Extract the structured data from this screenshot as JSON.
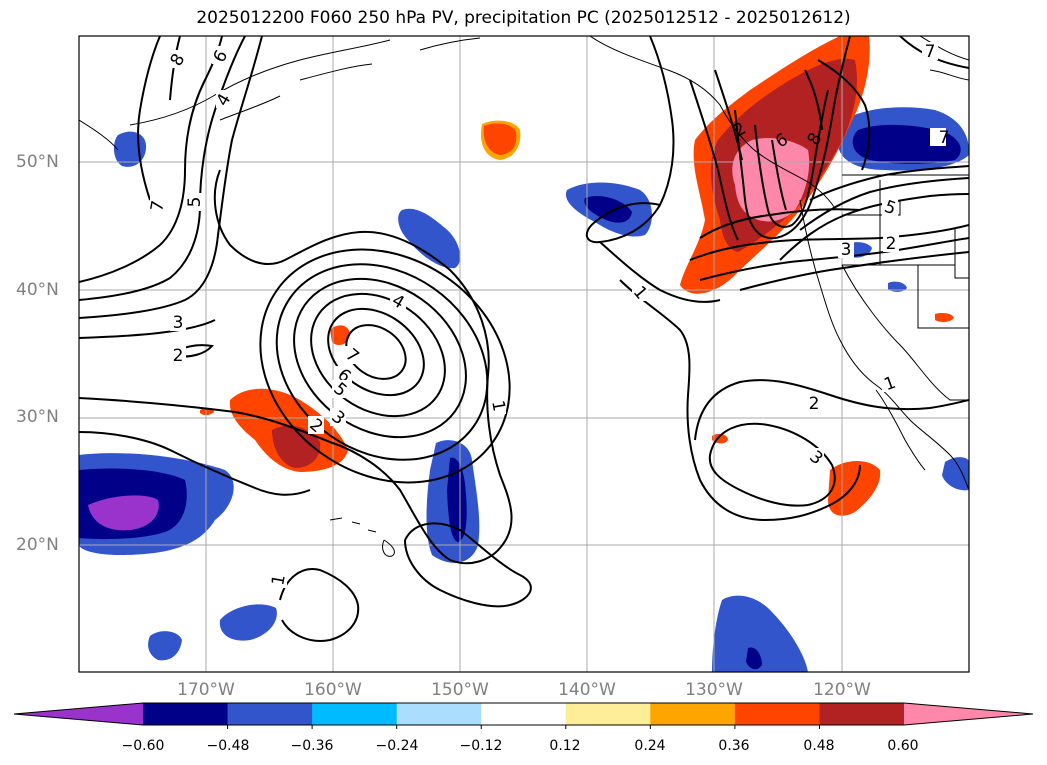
{
  "title": "2025012200 F060 250 hPa PV, precipitation PC (2025012512 - 2025012612)",
  "lat_labels": [
    "50°N",
    "40°N",
    "30°N",
    "20°N"
  ],
  "lon_labels": [
    "170°W",
    "160°W",
    "150°W",
    "140°W",
    "130°W",
    "120°W"
  ],
  "colorbar": {
    "ticks": [
      "−0.60",
      "−0.48",
      "−0.36",
      "−0.24",
      "−0.12",
      "0.12",
      "0.24",
      "0.36",
      "0.48",
      "0.60"
    ],
    "colors": [
      "#9933cc",
      "#000088",
      "#3355cc",
      "#00bbff",
      "#aaddff",
      "#ffffff",
      "#ffee99",
      "#ffa500",
      "#ff4400",
      "#b22222",
      "#ff88aa"
    ]
  },
  "contour_labels": [
    "8",
    "6",
    "4",
    "7",
    "5",
    "3",
    "2",
    "4",
    "7",
    "6",
    "5",
    "3",
    "2",
    "1",
    "1",
    "1",
    "6",
    "8",
    "7",
    "5",
    "2",
    "3",
    "2",
    "3",
    "1",
    "2",
    "7"
  ]
}
